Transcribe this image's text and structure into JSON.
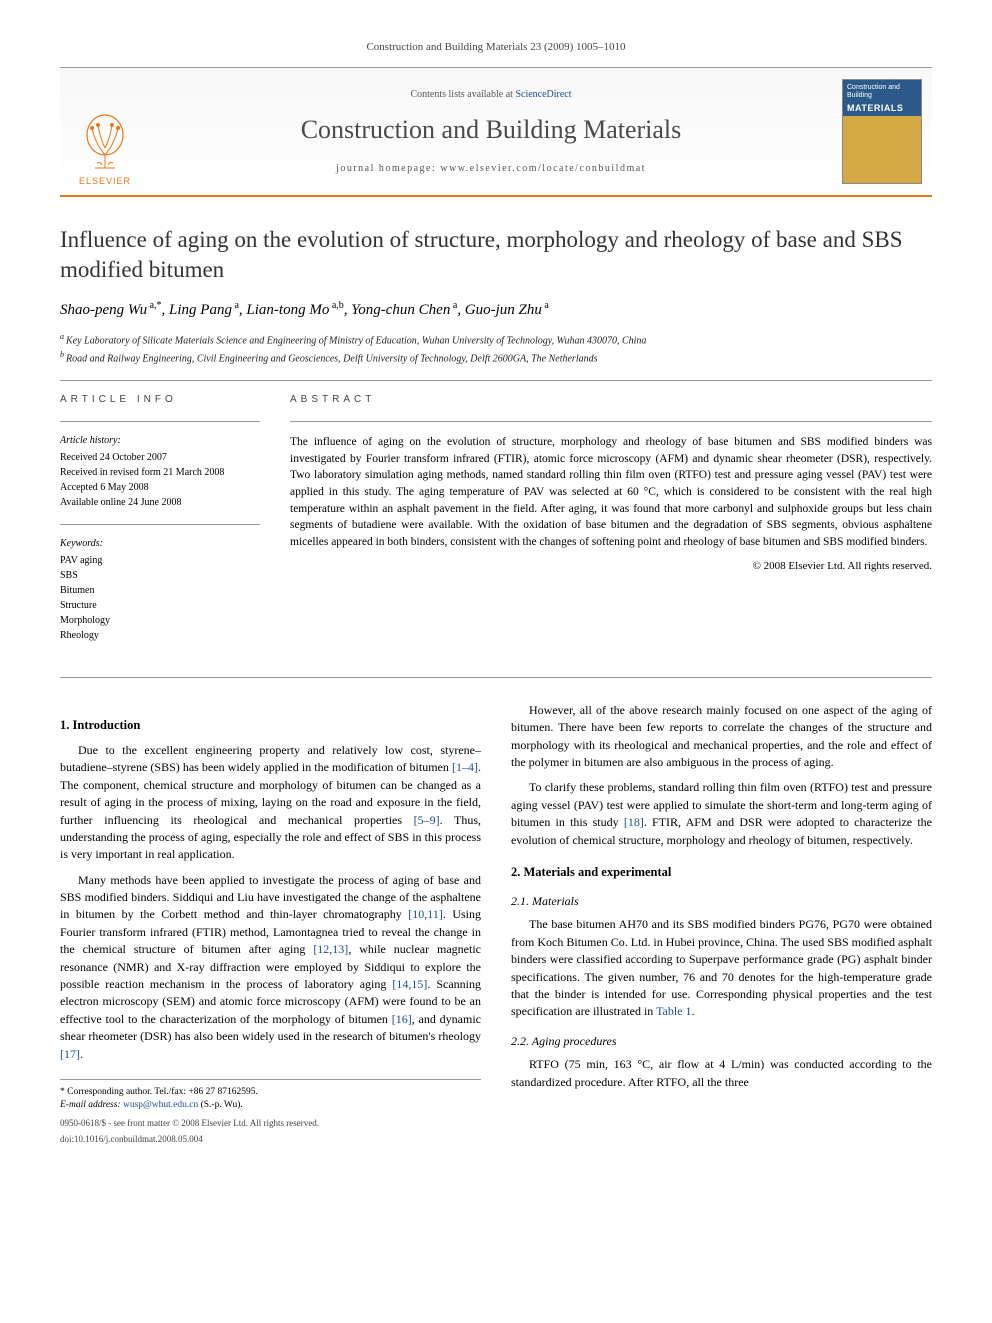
{
  "header": {
    "running_head": "Construction and Building Materials 23 (2009) 1005–1010",
    "contents_prefix": "Contents lists available at ",
    "contents_link": "ScienceDirect",
    "journal_name": "Construction and Building Materials",
    "homepage_prefix": "journal homepage: ",
    "homepage_url": "www.elsevier.com/locate/conbuildmat",
    "publisher": "ELSEVIER",
    "cover_top": "Construction and Building",
    "cover_main": "MATERIALS"
  },
  "article": {
    "title": "Influence of aging on the evolution of structure, morphology and rheology of base and SBS modified bitumen",
    "authors_html": "Shao-peng Wu",
    "authors": [
      {
        "name": "Shao-peng Wu",
        "sup": "a,*"
      },
      {
        "name": "Ling Pang",
        "sup": "a"
      },
      {
        "name": "Lian-tong Mo",
        "sup": "a,b"
      },
      {
        "name": "Yong-chun Chen",
        "sup": "a"
      },
      {
        "name": "Guo-jun Zhu",
        "sup": "a"
      }
    ],
    "affiliations": [
      {
        "sup": "a",
        "text": "Key Laboratory of Silicate Materials Science and Engineering of Ministry of Education, Wuhan University of Technology, Wuhan 430070, China"
      },
      {
        "sup": "b",
        "text": "Road and Railway Engineering, Civil Engineering and Geosciences, Delft University of Technology, Delft 2600GA, The Netherlands"
      }
    ]
  },
  "info": {
    "heading": "ARTICLE INFO",
    "history_label": "Article history:",
    "history": [
      "Received 24 October 2007",
      "Received in revised form 21 March 2008",
      "Accepted 6 May 2008",
      "Available online 24 June 2008"
    ],
    "keywords_label": "Keywords:",
    "keywords": [
      "PAV aging",
      "SBS",
      "Bitumen",
      "Structure",
      "Morphology",
      "Rheology"
    ]
  },
  "abstract": {
    "heading": "ABSTRACT",
    "text": "The influence of aging on the evolution of structure, morphology and rheology of base bitumen and SBS modified binders was investigated by Fourier transform infrared (FTIR), atomic force microscopy (AFM) and dynamic shear rheometer (DSR), respectively. Two laboratory simulation aging methods, named standard rolling thin film oven (RTFO) test and pressure aging vessel (PAV) test were applied in this study. The aging temperature of PAV was selected at 60 °C, which is considered to be consistent with the real high temperature within an asphalt pavement in the field. After aging, it was found that more carbonyl and sulphoxide groups but less chain segments of butadiene were available. With the oxidation of base bitumen and the degradation of SBS segments, obvious asphaltene micelles appeared in both binders, consistent with the changes of softening point and rheology of base bitumen and SBS modified binders.",
    "copyright": "© 2008 Elsevier Ltd. All rights reserved."
  },
  "body": {
    "s1_heading": "1. Introduction",
    "s1_p1": "Due to the excellent engineering property and relatively low cost, styrene–butadiene–styrene (SBS) has been widely applied in the modification of bitumen [1–4]. The component, chemical structure and morphology of bitumen can be changed as a result of aging in the process of mixing, laying on the road and exposure in the field, further influencing its rheological and mechanical properties [5–9]. Thus, understanding the process of aging, especially the role and effect of SBS in this process is very important in real application.",
    "s1_p2": "Many methods have been applied to investigate the process of aging of base and SBS modified binders. Siddiqui and Liu have investigated the change of the asphaltene in bitumen by the Corbett method and thin-layer chromatography [10,11]. Using Fourier transform infrared (FTIR) method, Lamontagnea tried to reveal the change in the chemical structure of bitumen after aging [12,13], while nuclear magnetic resonance (NMR) and X-ray diffraction were employed by Siddiqui to explore the possible reaction mechanism in the process of laboratory aging [14,15]. Scanning electron microscopy (SEM) and atomic force microscopy (AFM) were found to be an effective tool to the characterization of the morphology of bitumen [16], and dynamic shear rheometer (DSR) has also been widely used in the research of bitumen's rheology [17].",
    "s1_p3": "However, all of the above research mainly focused on one aspect of the aging of bitumen. There have been few reports to correlate the changes of the structure and morphology with its rheological and mechanical properties, and the role and effect of the polymer in bitumen are also ambiguous in the process of aging.",
    "s1_p4": "To clarify these problems, standard rolling thin film oven (RTFO) test and pressure aging vessel (PAV) test were applied to simulate the short-term and long-term aging of bitumen in this study [18]. FTIR, AFM and DSR were adopted to characterize the evolution of chemical structure, morphology and rheology of bitumen, respectively.",
    "s2_heading": "2. Materials and experimental",
    "s21_heading": "2.1. Materials",
    "s21_p1": "The base bitumen AH70 and its SBS modified binders PG76, PG70 were obtained from Koch Bitumen Co. Ltd. in Hubei province, China. The used SBS modified asphalt binders were classified according to Superpave performance grade (PG) asphalt binder specifications. The given number, 76 and 70 denotes for the high-temperature grade that the binder is intended for use. Corresponding physical properties and the test specification are illustrated in Table 1.",
    "s22_heading": "2.2. Aging procedures",
    "s22_p1": "RTFO (75 min, 163 °C, air flow at 4 L/min) was conducted according to the standardized procedure. After RTFO, all the three"
  },
  "footnote": {
    "corr_label": "* Corresponding author. Tel./fax: +86 27 87162595.",
    "email_label": "E-mail address:",
    "email": "wusp@whut.edu.cn",
    "email_name": "(S.-p. Wu).",
    "legal1": "0950-0618/$ - see front matter © 2008 Elsevier Ltd. All rights reserved.",
    "legal2": "doi:10.1016/j.conbuildmat.2008.05.004"
  },
  "refs": {
    "r1_4": "[1–4]",
    "r5_9": "[5–9]",
    "r10_11": "[10,11]",
    "r12_13": "[12,13]",
    "r14_15": "[14,15]",
    "r16": "[16]",
    "r17": "[17]",
    "r18": "[18]",
    "t1": "Table 1"
  },
  "colors": {
    "accent": "#e67817",
    "link": "#1a4d8f",
    "cover_top": "#2b5a8a",
    "cover_bottom": "#d4a843"
  }
}
